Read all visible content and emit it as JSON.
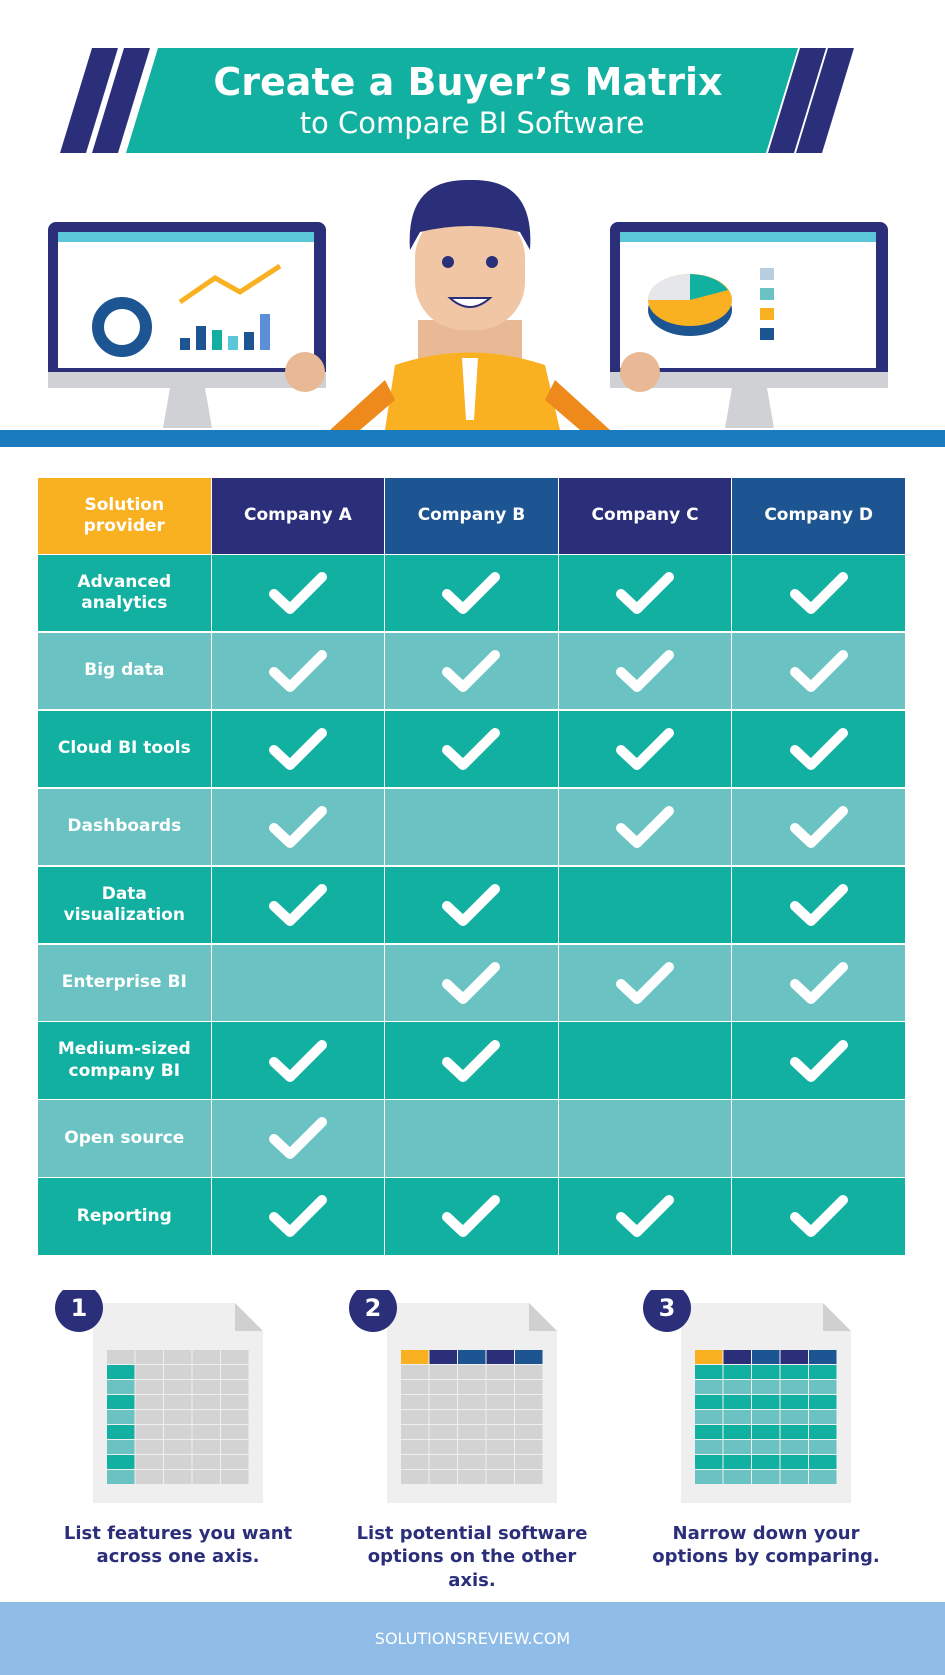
{
  "header": {
    "title": "Create a Buyer’s Matrix",
    "subtitle": "to Compare BI Software"
  },
  "table": {
    "columns": [
      "Solution provider",
      "Company A",
      "Company B",
      "Company C",
      "Company D"
    ],
    "rows": [
      {
        "feature": "Advanced analytics",
        "checks": [
          true,
          true,
          true,
          true
        ]
      },
      {
        "feature": "Big data",
        "checks": [
          true,
          true,
          true,
          true
        ]
      },
      {
        "feature": "Cloud BI tools",
        "checks": [
          true,
          true,
          true,
          true
        ]
      },
      {
        "feature": "Dashboards",
        "checks": [
          true,
          false,
          true,
          true
        ]
      },
      {
        "feature": "Data visualization",
        "checks": [
          true,
          true,
          false,
          true
        ]
      },
      {
        "feature": "Enterprise BI",
        "checks": [
          false,
          true,
          true,
          true
        ]
      },
      {
        "feature": "Medium-sized company BI",
        "checks": [
          true,
          true,
          false,
          true
        ]
      },
      {
        "feature": "Open source",
        "checks": [
          true,
          false,
          false,
          false
        ]
      },
      {
        "feature": "Reporting",
        "checks": [
          true,
          true,
          true,
          true
        ]
      }
    ]
  },
  "steps": [
    {
      "number": "1",
      "caption": "List features you want across one axis."
    },
    {
      "number": "2",
      "caption": "List potential software options on the other axis."
    },
    {
      "number": "3",
      "caption": "Narrow down your options by comparing."
    }
  ],
  "footer": "SOLUTIONSREVIEW.COM"
}
